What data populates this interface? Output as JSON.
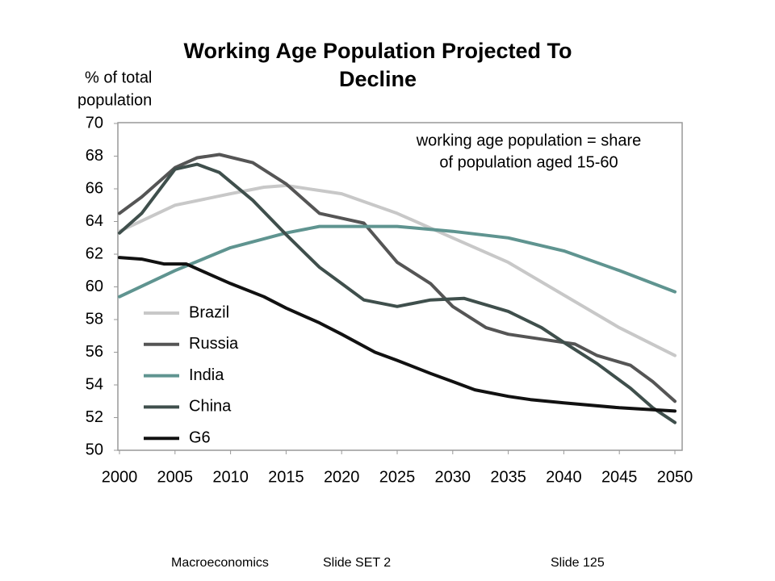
{
  "chart_data": {
    "type": "line",
    "title": [
      "Working Age Population Projected To",
      "Decline"
    ],
    "y_label": [
      "% of total",
      "population"
    ],
    "annotation": [
      "working age population = share",
      "of population aged 15-60"
    ],
    "xlim": [
      2000,
      2050
    ],
    "xticks": [
      2000,
      2005,
      2010,
      2015,
      2020,
      2025,
      2030,
      2035,
      2040,
      2045,
      2050
    ],
    "ylim": [
      50,
      70
    ],
    "yticks": [
      50,
      52,
      54,
      56,
      58,
      60,
      62,
      64,
      66,
      68,
      70
    ],
    "series": [
      {
        "name": "Brazil",
        "color": "#c8c8c8",
        "x": [
          2000,
          2005,
          2010,
          2013,
          2015,
          2020,
          2025,
          2030,
          2035,
          2040,
          2045,
          2050
        ],
        "values": [
          63.4,
          65.0,
          65.7,
          66.1,
          66.2,
          65.7,
          64.5,
          63.0,
          61.5,
          59.5,
          57.5,
          55.8
        ]
      },
      {
        "name": "Russia",
        "color": "#555555",
        "x": [
          2000,
          2002,
          2005,
          2007,
          2009,
          2012,
          2015,
          2018,
          2020,
          2022,
          2025,
          2028,
          2030,
          2033,
          2035,
          2038,
          2041,
          2043,
          2046,
          2048,
          2050
        ],
        "values": [
          64.5,
          65.5,
          67.3,
          67.9,
          68.1,
          67.6,
          66.3,
          64.5,
          64.2,
          63.9,
          61.5,
          60.2,
          58.8,
          57.5,
          57.1,
          56.8,
          56.5,
          55.8,
          55.2,
          54.2,
          53.0
        ]
      },
      {
        "name": "India",
        "color": "#5f9490",
        "x": [
          2000,
          2005,
          2010,
          2015,
          2018,
          2020,
          2025,
          2030,
          2035,
          2040,
          2045,
          2050
        ],
        "values": [
          59.4,
          61.0,
          62.4,
          63.3,
          63.7,
          63.7,
          63.7,
          63.4,
          63.0,
          62.2,
          61.0,
          59.7
        ]
      },
      {
        "name": "China",
        "color": "#3f4f4c",
        "x": [
          2000,
          2002,
          2005,
          2007,
          2009,
          2012,
          2015,
          2018,
          2020,
          2022,
          2025,
          2028,
          2031,
          2035,
          2038,
          2040,
          2043,
          2046,
          2048,
          2050
        ],
        "values": [
          63.3,
          64.5,
          67.2,
          67.5,
          67.0,
          65.3,
          63.2,
          61.2,
          60.2,
          59.2,
          58.8,
          59.2,
          59.3,
          58.5,
          57.5,
          56.6,
          55.3,
          53.8,
          52.6,
          51.7
        ]
      },
      {
        "name": "G6",
        "color": "#111111",
        "x": [
          2000,
          2002,
          2004,
          2006,
          2008,
          2010,
          2013,
          2015,
          2018,
          2020,
          2023,
          2025,
          2028,
          2030,
          2032,
          2035,
          2037,
          2040,
          2045,
          2050
        ],
        "values": [
          61.8,
          61.7,
          61.4,
          61.4,
          60.8,
          60.2,
          59.4,
          58.7,
          57.8,
          57.1,
          56.0,
          55.5,
          54.7,
          54.2,
          53.7,
          53.3,
          53.1,
          52.9,
          52.6,
          52.4
        ]
      }
    ]
  },
  "footer": [
    "Macroeconomics",
    "Slide SET 2",
    "Slide 125"
  ]
}
